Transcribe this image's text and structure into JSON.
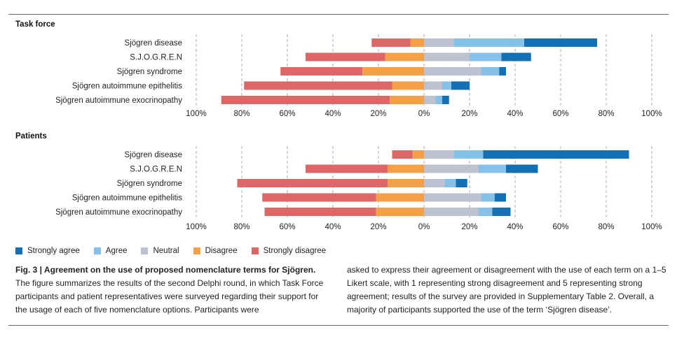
{
  "chart_data": {
    "type": "bar",
    "stacked": "diverging",
    "legend": [
      {
        "name": "Strongly agree",
        "color": "#1470b3"
      },
      {
        "name": "Agree",
        "color": "#85c1e9"
      },
      {
        "name": "Neutral",
        "color": "#bcc2cf"
      },
      {
        "name": "Disagree",
        "color": "#f4a048"
      },
      {
        "name": "Strongly disagree",
        "color": "#dd6666"
      }
    ],
    "x_ticks": [
      "100%",
      "80%",
      "60%",
      "40%",
      "20%",
      "0%",
      "20%",
      "40%",
      "60%",
      "80%",
      "100%"
    ],
    "xlim": [
      -100,
      100
    ],
    "panels": [
      {
        "title": "Task force",
        "categories": [
          "Sjögren disease",
          "S.J.O.G.R.E.N",
          "Sjögren syndrome",
          "Sjögren autoimmune epithelitis",
          "Sjögren autoimmune exocrinopathy"
        ],
        "series": [
          {
            "name": "Strongly disagree",
            "values": [
              17,
              35,
              36,
              65,
              74
            ]
          },
          {
            "name": "Disagree",
            "values": [
              6,
              17,
              27,
              14,
              15
            ]
          },
          {
            "name": "Neutral",
            "values": [
              13,
              20,
              25,
              8,
              5
            ]
          },
          {
            "name": "Agree",
            "values": [
              31,
              14,
              8,
              4,
              3
            ]
          },
          {
            "name": "Strongly agree",
            "values": [
              32,
              13,
              3,
              8,
              3
            ]
          }
        ]
      },
      {
        "title": "Patients",
        "categories": [
          "Sjögren disease",
          "S.J.O.G.R.E.N",
          "Sjögren syndrome",
          "Sjögren autoimmune epithelitis",
          "Sjögren autoimmune exocrinopathy"
        ],
        "series": [
          {
            "name": "Strongly disagree",
            "values": [
              9,
              36,
              66,
              50,
              49
            ]
          },
          {
            "name": "Disagree",
            "values": [
              5,
              16,
              16,
              21,
              21
            ]
          },
          {
            "name": "Neutral",
            "values": [
              13,
              24,
              9,
              25,
              24
            ]
          },
          {
            "name": "Agree",
            "values": [
              13,
              12,
              5,
              6,
              6
            ]
          },
          {
            "name": "Strongly agree",
            "values": [
              64,
              14,
              5,
              5,
              8
            ]
          }
        ]
      }
    ]
  },
  "caption": {
    "bold": "Fig. 3 | Agreement on the use of proposed nomenclature terms for Sjögren.",
    "left_text": "The figure summarizes the results of the second Delphi round, in which Task Force participants and patient representatives were surveyed regarding their support for the usage of each of five nomenclature options. Participants were",
    "right_text": "asked to express their agreement or disagreement with the use of each term on a 1–5 Likert scale, with 1 representing strong disagreement and 5 representing strong agreement; results of the survey are provided in Supplementary Table 2. Overall, a majority of participants supported the use of the term ‘Sjögren disease’."
  }
}
